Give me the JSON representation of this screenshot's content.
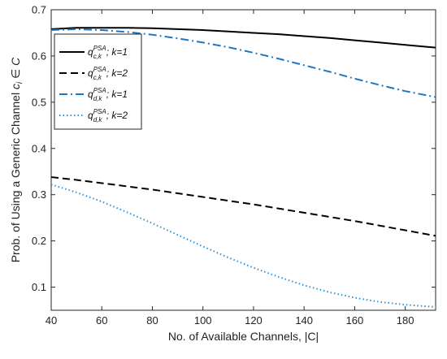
{
  "chart_data": {
    "type": "line",
    "title": "",
    "xlabel": "No. of Available Channels, |C|",
    "ylabel_parts": {
      "prefix": "Prob. of Using a Generic Channel ",
      "var": "c",
      "sub": "i",
      "rel": " ∈ ",
      "set": "C"
    },
    "xlim": [
      40,
      192
    ],
    "ylim": [
      0.05,
      0.7
    ],
    "xticks": [
      40,
      60,
      80,
      100,
      120,
      140,
      160,
      180
    ],
    "yticks": [
      0.1,
      0.2,
      0.3,
      0.4,
      0.5,
      0.6,
      0.7
    ],
    "grid": false,
    "legend_position": "top-left",
    "series": [
      {
        "name": "q_{c,k}^{PSA}; k=1",
        "legend": {
          "q": "q",
          "sup": "PSA",
          "sub": "c,k",
          "tail": "; k=1"
        },
        "color": "#000000",
        "style": "solid",
        "x": [
          40,
          50,
          60,
          70,
          80,
          90,
          100,
          110,
          120,
          130,
          140,
          150,
          160,
          170,
          180,
          192
        ],
        "y": [
          0.658,
          0.661,
          0.661,
          0.661,
          0.66,
          0.658,
          0.656,
          0.653,
          0.65,
          0.647,
          0.643,
          0.639,
          0.634,
          0.629,
          0.624,
          0.618
        ]
      },
      {
        "name": "q_{c,k}^{PSA}; k=2",
        "legend": {
          "q": "q",
          "sup": "PSA",
          "sub": "c,k",
          "tail": "; k=2"
        },
        "color": "#000000",
        "style": "dashed",
        "x": [
          40,
          50,
          60,
          70,
          80,
          90,
          100,
          110,
          120,
          130,
          140,
          150,
          160,
          170,
          180,
          192
        ],
        "y": [
          0.338,
          0.332,
          0.325,
          0.318,
          0.311,
          0.303,
          0.295,
          0.287,
          0.279,
          0.27,
          0.261,
          0.252,
          0.243,
          0.233,
          0.223,
          0.211
        ]
      },
      {
        "name": "q_{d,k}^{PSA}; k=1",
        "legend": {
          "q": "q",
          "sup": "PSA",
          "sub": "d,k",
          "tail": "; k=1"
        },
        "color": "#1f77c4",
        "style": "dashdot",
        "x": [
          40,
          50,
          60,
          70,
          80,
          90,
          100,
          110,
          120,
          130,
          140,
          150,
          160,
          170,
          180,
          192
        ],
        "y": [
          0.656,
          0.658,
          0.656,
          0.652,
          0.646,
          0.638,
          0.629,
          0.619,
          0.607,
          0.594,
          0.58,
          0.566,
          0.551,
          0.537,
          0.524,
          0.511
        ]
      },
      {
        "name": "q_{d,k}^{PSA}; k=2",
        "legend": {
          "q": "q",
          "sup": "PSA",
          "sub": "d,k",
          "tail": "; k=2"
        },
        "color": "#2b93d8",
        "style": "dotted",
        "x": [
          40,
          50,
          60,
          70,
          80,
          90,
          100,
          110,
          120,
          130,
          140,
          150,
          160,
          170,
          180,
          192
        ],
        "y": [
          0.322,
          0.305,
          0.285,
          0.262,
          0.238,
          0.213,
          0.188,
          0.164,
          0.142,
          0.122,
          0.104,
          0.089,
          0.077,
          0.068,
          0.062,
          0.057
        ]
      }
    ]
  }
}
